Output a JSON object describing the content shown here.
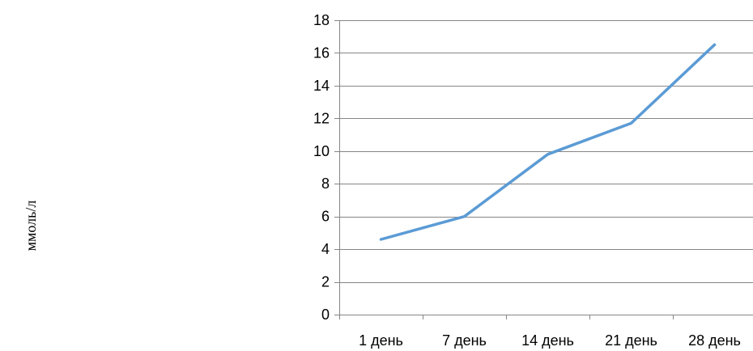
{
  "chart_data": {
    "type": "line",
    "title": "",
    "xlabel": "",
    "ylabel": "ммоль/л",
    "categories": [
      "1 день",
      "7 день",
      "14 день",
      "21 день",
      "28 день"
    ],
    "series": [
      {
        "values": [
          4.6,
          6.0,
          9.8,
          11.7,
          16.5
        ]
      }
    ],
    "ylim": [
      0,
      18
    ],
    "yticks": [
      0,
      2,
      4,
      6,
      8,
      10,
      12,
      14,
      16,
      18
    ],
    "grid": true,
    "legend": "none",
    "line_color": "#5B9BD5"
  }
}
